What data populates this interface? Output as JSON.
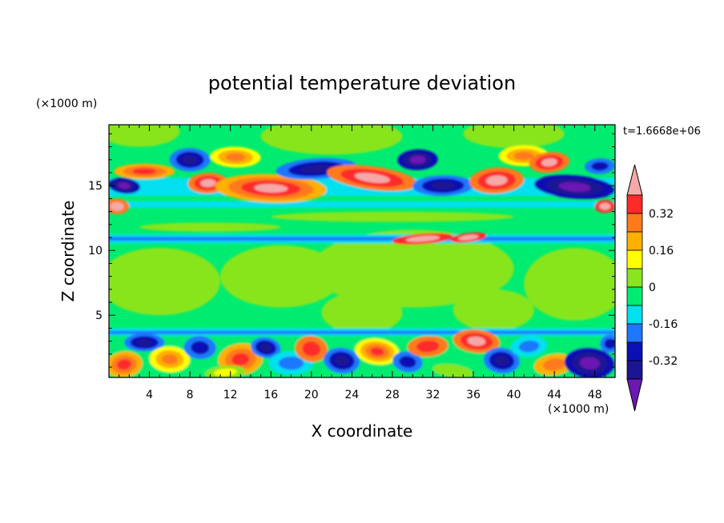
{
  "chart_data": {
    "type": "heatmap",
    "title": "potential temperature deviation",
    "xlabel": "X coordinate",
    "ylabel": "Z coordinate",
    "x_units": "(×1000 m)",
    "y_units": "(×1000 m)",
    "time_label": "t=1.6668e+06",
    "xlim": [
      0,
      50
    ],
    "ylim": [
      0.2,
      19.7
    ],
    "x_ticks": [
      4,
      8,
      12,
      16,
      20,
      24,
      28,
      32,
      36,
      40,
      44,
      48
    ],
    "y_ticks": [
      5,
      10,
      15
    ],
    "colorbar": {
      "labeled_levels": [
        "0.32",
        "0.16",
        "0",
        "-0.16",
        "-0.32"
      ],
      "level_values": [
        0.4,
        0.32,
        0.24,
        0.16,
        0.08,
        0,
        -0.08,
        -0.16,
        -0.24,
        -0.32,
        -0.4
      ],
      "colors": [
        "#f4a9a8",
        "#ff2a2a",
        "#ff7a1a",
        "#ffb000",
        "#ffff00",
        "#88e51e",
        "#00ec70",
        "#00e0ee",
        "#1e78ff",
        "#0a10b4",
        "#1c1492",
        "#6c18b4"
      ]
    },
    "bands": [
      {
        "z_range": [
          18.0,
          19.7
        ],
        "dominant": "0",
        "note": "green with light-green patches"
      },
      {
        "z_range": [
          13.5,
          17.5
        ],
        "dominant": "mixed",
        "note": "strong positive and negative anomalies, up to >0.4 near z=14-16"
      },
      {
        "z_range": [
          10.6,
          11.2
        ],
        "dominant": "-0.16",
        "note": "thin blue/cyan band across domain"
      },
      {
        "z_range": [
          4.0,
          10.5
        ],
        "dominant": "0",
        "note": "mostly 0 to 0.08 with light green regions"
      },
      {
        "z_range": [
          3.4,
          4.0
        ],
        "dominant": "-0.08",
        "note": "cyan/blue band"
      },
      {
        "z_range": [
          0.2,
          3.4
        ],
        "dominant": "mixed",
        "note": "turbulent boundary layer, values from <-0.4 to >0.4"
      }
    ]
  }
}
